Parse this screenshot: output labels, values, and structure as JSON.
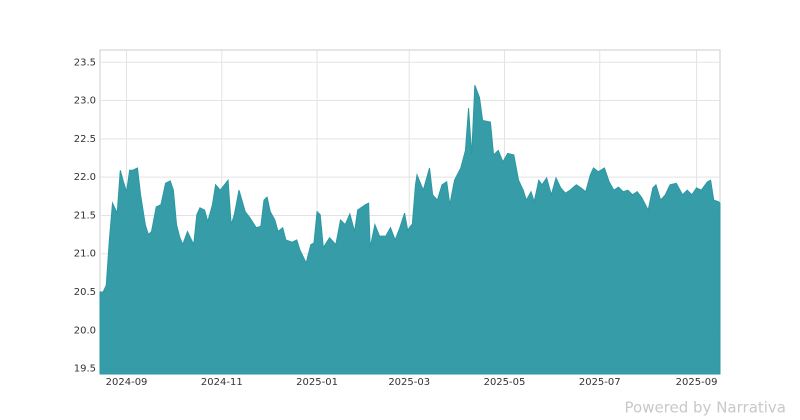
{
  "chart_data": {
    "type": "area",
    "x": [
      "2024-08-15",
      "2024-08-17",
      "2024-08-19",
      "2024-08-21",
      "2024-08-23",
      "2024-08-26",
      "2024-08-28",
      "2024-08-30",
      "2024-09-01",
      "2024-09-03",
      "2024-09-05",
      "2024-09-08",
      "2024-09-10",
      "2024-09-13",
      "2024-09-15",
      "2024-09-17",
      "2024-09-20",
      "2024-09-23",
      "2024-09-26",
      "2024-09-29",
      "2024-10-01",
      "2024-10-03",
      "2024-10-05",
      "2024-10-07",
      "2024-10-10",
      "2024-10-14",
      "2024-10-16",
      "2024-10-18",
      "2024-10-21",
      "2024-10-23",
      "2024-10-26",
      "2024-10-28",
      "2024-10-31",
      "2024-11-05",
      "2024-11-07",
      "2024-11-09",
      "2024-11-12",
      "2024-11-16",
      "2024-11-19",
      "2024-11-23",
      "2024-11-26",
      "2024-11-28",
      "2024-11-30",
      "2024-12-02",
      "2024-12-05",
      "2024-12-07",
      "2024-12-10",
      "2024-12-12",
      "2024-12-16",
      "2024-12-19",
      "2024-12-21",
      "2024-12-25",
      "2024-12-28",
      "2024-12-30",
      "2025-01-01",
      "2025-01-03",
      "2025-01-05",
      "2025-01-09",
      "2025-01-13",
      "2025-01-16",
      "2025-01-19",
      "2025-01-22",
      "2025-01-25",
      "2025-01-27",
      "2025-02-01",
      "2025-02-03",
      "2025-02-04",
      "2025-02-07",
      "2025-02-10",
      "2025-02-14",
      "2025-02-17",
      "2025-02-20",
      "2025-02-23",
      "2025-02-26",
      "2025-02-28",
      "2025-03-03",
      "2025-03-05",
      "2025-03-06",
      "2025-03-10",
      "2025-03-14",
      "2025-03-16",
      "2025-03-19",
      "2025-03-22",
      "2025-03-25",
      "2025-03-27",
      "2025-03-30",
      "2025-04-03",
      "2025-04-06",
      "2025-04-08",
      "2025-04-10",
      "2025-04-12",
      "2025-04-15",
      "2025-04-17",
      "2025-04-22",
      "2025-04-24",
      "2025-04-27",
      "2025-04-30",
      "2025-05-03",
      "2025-05-07",
      "2025-05-10",
      "2025-05-13",
      "2025-05-15",
      "2025-05-18",
      "2025-05-20",
      "2025-05-23",
      "2025-05-25",
      "2025-05-28",
      "2025-05-31",
      "2025-06-03",
      "2025-06-06",
      "2025-06-09",
      "2025-06-12",
      "2025-06-16",
      "2025-06-19",
      "2025-06-22",
      "2025-06-25",
      "2025-06-27",
      "2025-06-30",
      "2025-07-04",
      "2025-07-07",
      "2025-07-10",
      "2025-07-13",
      "2025-07-16",
      "2025-07-19",
      "2025-07-22",
      "2025-07-25",
      "2025-07-28",
      "2025-08-01",
      "2025-08-04",
      "2025-08-06",
      "2025-08-09",
      "2025-08-12",
      "2025-08-15",
      "2025-08-19",
      "2025-08-23",
      "2025-08-26",
      "2025-08-29",
      "2025-09-01",
      "2025-09-04",
      "2025-09-08",
      "2025-09-10",
      "2025-09-12",
      "2025-09-15",
      "2025-09-16"
    ],
    "values": [
      20.5,
      20.5,
      20.59,
      21.18,
      21.66,
      21.53,
      22.09,
      21.94,
      21.81,
      22.09,
      22.09,
      22.12,
      21.77,
      21.38,
      21.25,
      21.29,
      21.61,
      21.64,
      21.92,
      21.95,
      21.83,
      21.38,
      21.22,
      21.12,
      21.29,
      21.12,
      21.51,
      21.6,
      21.57,
      21.42,
      21.64,
      21.9,
      21.83,
      21.96,
      21.38,
      21.51,
      21.83,
      21.55,
      21.47,
      21.34,
      21.36,
      21.7,
      21.74,
      21.55,
      21.44,
      21.29,
      21.34,
      21.18,
      21.15,
      21.18,
      21.05,
      20.88,
      21.12,
      21.14,
      21.55,
      21.51,
      21.08,
      21.21,
      21.12,
      21.44,
      21.38,
      21.52,
      21.29,
      21.57,
      21.64,
      21.66,
      21.08,
      21.38,
      21.23,
      21.23,
      21.34,
      21.18,
      21.34,
      21.53,
      21.31,
      21.39,
      21.9,
      22.03,
      21.83,
      22.12,
      21.77,
      21.7,
      21.9,
      21.94,
      21.64,
      21.96,
      22.12,
      22.35,
      22.9,
      22.29,
      23.2,
      23.04,
      22.74,
      22.72,
      22.29,
      22.35,
      22.2,
      22.31,
      22.29,
      21.96,
      21.83,
      21.7,
      21.81,
      21.68,
      21.96,
      21.9,
      21.99,
      21.77,
      21.99,
      21.86,
      21.79,
      21.83,
      21.9,
      21.86,
      21.81,
      22.03,
      22.12,
      22.07,
      22.12,
      21.94,
      21.83,
      21.87,
      21.81,
      21.83,
      21.77,
      21.81,
      21.73,
      21.57,
      21.86,
      21.9,
      21.7,
      21.77,
      21.9,
      21.92,
      21.77,
      21.83,
      21.77,
      21.86,
      21.83,
      21.94,
      21.96,
      21.7,
      21.68,
      21.66
    ],
    "color": "#2b98a3",
    "xlim": [
      "2024-08-15",
      "2025-09-16"
    ],
    "xticks": [
      {
        "value": "2024-09-01",
        "label": "2024-09"
      },
      {
        "value": "2024-11-01",
        "label": "2024-11"
      },
      {
        "value": "2025-01-01",
        "label": "2025-01"
      },
      {
        "value": "2025-03-01",
        "label": "2025-03"
      },
      {
        "value": "2025-05-01",
        "label": "2025-05"
      },
      {
        "value": "2025-07-01",
        "label": "2025-07"
      },
      {
        "value": "2025-09-01",
        "label": "2025-09"
      }
    ],
    "ylim": [
      19.43,
      23.66
    ],
    "yticks": [
      19.5,
      {
        "value": 20,
        "label": "20.0"
      },
      20.5,
      {
        "value": 21,
        "label": "21.0"
      },
      21.5,
      {
        "value": 22,
        "label": "22.0"
      },
      22.5,
      {
        "value": 23,
        "label": "23.0"
      },
      23.5
    ],
    "grid": true,
    "watermark": "Powered by Narrativa"
  }
}
